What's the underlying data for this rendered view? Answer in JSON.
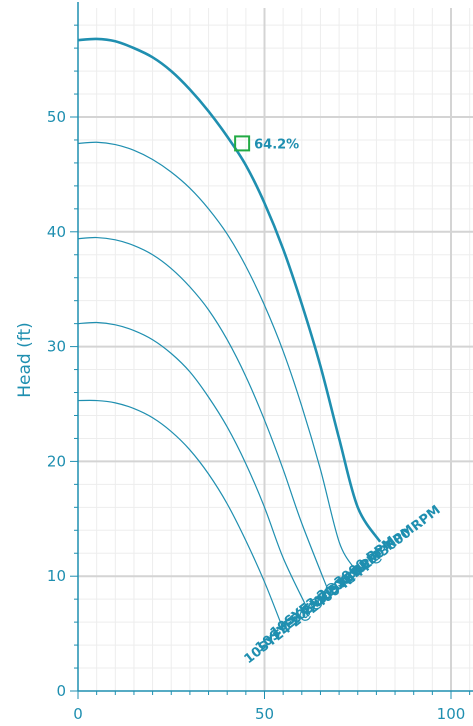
{
  "chart_data": {
    "type": "line",
    "title": "",
    "xlabel": "",
    "ylabel": "Head (ft)",
    "xlim": [
      0,
      105
    ],
    "ylim": [
      0,
      60
    ],
    "x_ticks": [
      0,
      50,
      100
    ],
    "y_ticks": [
      0,
      10,
      20,
      30,
      40,
      50
    ],
    "grid": true,
    "colors": {
      "curve": "#1f8fb0",
      "marker": "#22aa44",
      "grid_major": "#d4d4d4",
      "grid_minor": "#ededed",
      "axis": "#1f8fb0"
    },
    "series": [
      {
        "name": "",
        "bold": true,
        "x": [
          0,
          5,
          10,
          15,
          20,
          25,
          30,
          35,
          40,
          45,
          50,
          55,
          60,
          65,
          70,
          75,
          81
        ],
        "y": [
          56.7,
          56.8,
          56.6,
          56.0,
          55.2,
          54.0,
          52.4,
          50.5,
          48.3,
          45.8,
          42.5,
          38.5,
          33.7,
          28.3,
          22.0,
          16.0,
          13.0
        ]
      },
      {
        "name": "",
        "bold": false,
        "x": [
          0,
          5,
          10,
          15,
          20,
          25,
          30,
          35,
          40,
          45,
          50,
          55,
          60,
          65,
          70,
          74
        ],
        "y": [
          47.7,
          47.8,
          47.6,
          47.1,
          46.3,
          45.2,
          43.8,
          42.0,
          39.8,
          37.0,
          33.6,
          29.6,
          24.8,
          19.3,
          13.0,
          10.7
        ]
      },
      {
        "name": "",
        "bold": false,
        "x": [
          0,
          5,
          10,
          15,
          20,
          25,
          30,
          35,
          40,
          45,
          50,
          55,
          60,
          67.5
        ],
        "y": [
          39.4,
          39.5,
          39.3,
          38.8,
          38.0,
          36.8,
          35.2,
          33.2,
          30.6,
          27.4,
          23.6,
          19.3,
          14.6,
          8.4
        ]
      },
      {
        "name": "",
        "bold": false,
        "x": [
          0,
          5,
          10,
          15,
          20,
          25,
          30,
          35,
          40,
          45,
          50,
          55,
          61
        ],
        "y": [
          32.0,
          32.1,
          31.9,
          31.4,
          30.6,
          29.4,
          27.8,
          25.6,
          23.0,
          19.8,
          16.0,
          11.6,
          7.5
        ]
      },
      {
        "name": "",
        "bold": false,
        "x": [
          0,
          5,
          10,
          15,
          20,
          25,
          30,
          35,
          40,
          45,
          50,
          54.5
        ],
        "y": [
          25.3,
          25.3,
          25.1,
          24.6,
          23.8,
          22.6,
          21.0,
          18.9,
          16.3,
          13.1,
          9.5,
          5.8
        ]
      }
    ],
    "curve_labels": [
      {
        "text": "10SYE4 2@2400 RPM",
        "x": 62,
        "y": 6.5
      },
      {
        "text": "10SYE3 2@2700 RPM",
        "x": 65,
        "y": 7.5
      },
      {
        "text": "10SYE3 2@3000 RPM",
        "x": 69,
        "y": 8.8
      },
      {
        "text": "10SYE2 2@3300 RPM",
        "x": 74,
        "y": 9.8
      },
      {
        "text": "10SYE1 2@3600 RPM",
        "x": 81,
        "y": 11.5
      }
    ],
    "annotations": [
      {
        "text": "64.2%",
        "x": 44,
        "y": 47.7
      }
    ]
  }
}
